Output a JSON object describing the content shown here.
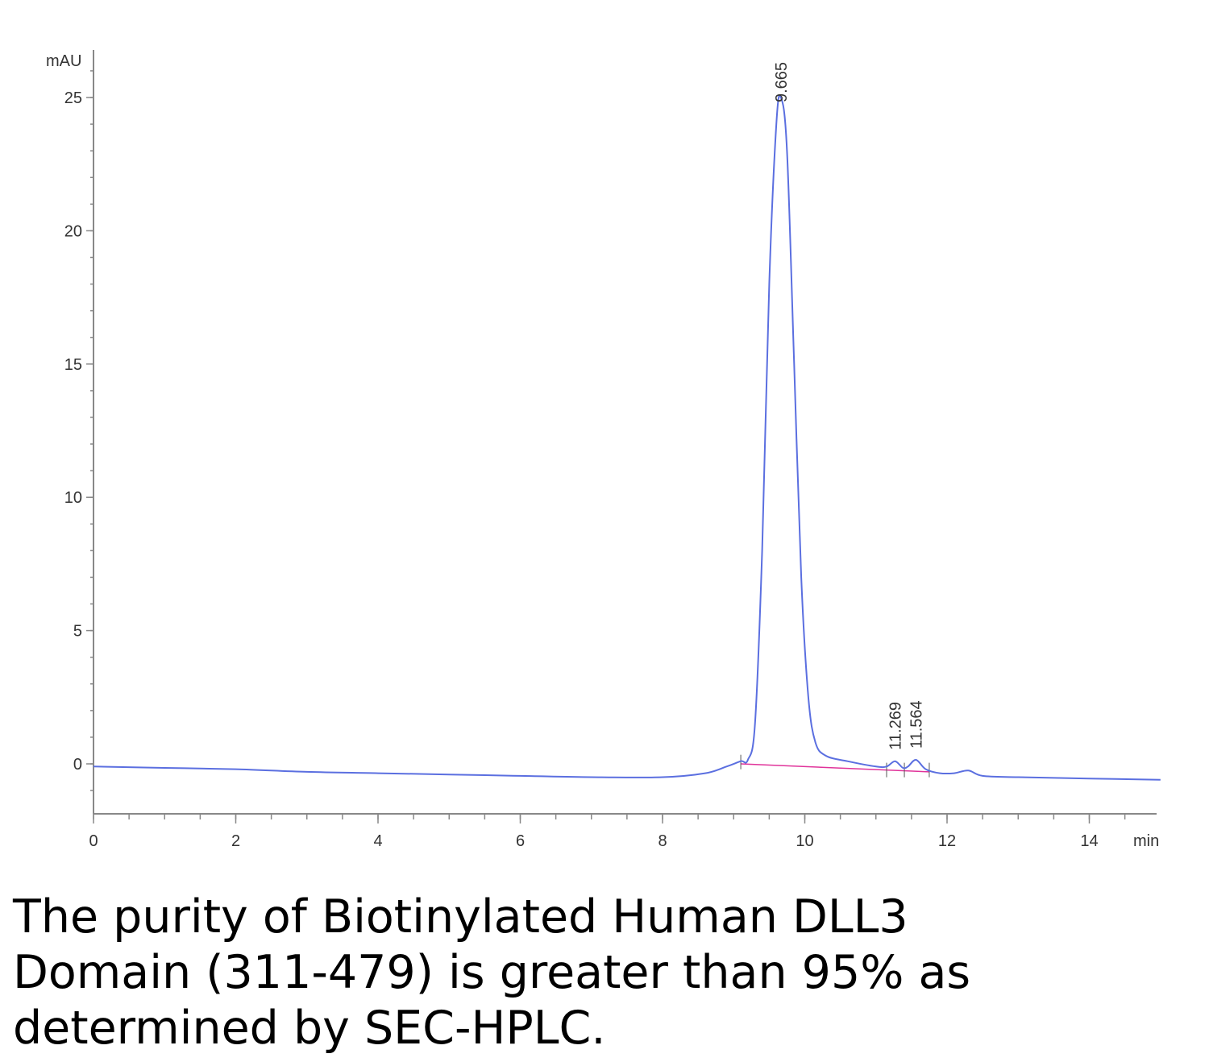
{
  "chart_data": {
    "type": "line",
    "y_unit_label": "mAU",
    "x_unit_label": "min",
    "xlim": [
      0,
      15
    ],
    "ylim": [
      -2,
      27
    ],
    "x_ticks": [
      0,
      2,
      4,
      6,
      8,
      10,
      12,
      14
    ],
    "y_ticks": [
      0,
      5,
      10,
      15,
      20,
      25
    ],
    "grid": false,
    "colors": {
      "signal": "#5b6fe0",
      "baseline": "#e0339a",
      "axis": "#888888"
    },
    "series": [
      {
        "x": [
          0,
          1,
          2,
          3,
          4,
          5,
          6,
          7,
          8,
          8.6,
          8.9,
          9.1,
          9.2,
          9.3,
          9.4,
          9.5,
          9.6,
          9.665,
          9.75,
          9.85,
          9.95,
          10.05,
          10.15,
          10.3,
          10.6,
          11.0,
          11.15,
          11.269,
          11.38,
          11.45,
          11.564,
          11.7,
          11.9,
          12.1,
          12.3,
          12.5,
          13.0,
          14.0,
          15.0
        ],
        "y": [
          -0.1,
          -0.15,
          -0.2,
          -0.3,
          -0.35,
          -0.4,
          -0.45,
          -0.5,
          -0.5,
          -0.35,
          -0.1,
          0.1,
          0.15,
          1.5,
          8.0,
          18.0,
          24.0,
          25.0,
          23.0,
          15.0,
          7.0,
          2.5,
          0.8,
          0.3,
          0.1,
          -0.1,
          -0.1,
          0.1,
          -0.15,
          -0.1,
          0.15,
          -0.2,
          -0.35,
          -0.35,
          -0.25,
          -0.45,
          -0.5,
          -0.55,
          -0.6
        ]
      }
    ],
    "peaks": [
      {
        "label": "9.665",
        "x": 9.665,
        "y": 25.0
      },
      {
        "label": "11.269",
        "x": 11.269,
        "y": 0.1
      },
      {
        "label": "11.564",
        "x": 11.564,
        "y": 0.15
      }
    ],
    "integration_baseline": {
      "x": [
        9.1,
        11.75
      ],
      "y": [
        0.0,
        -0.3
      ]
    }
  },
  "caption": {
    "line1": "The purity of Biotinylated Human DLL3",
    "line2": "Domain (311-479) is greater than 95% as",
    "line3": "determined by SEC-HPLC."
  }
}
